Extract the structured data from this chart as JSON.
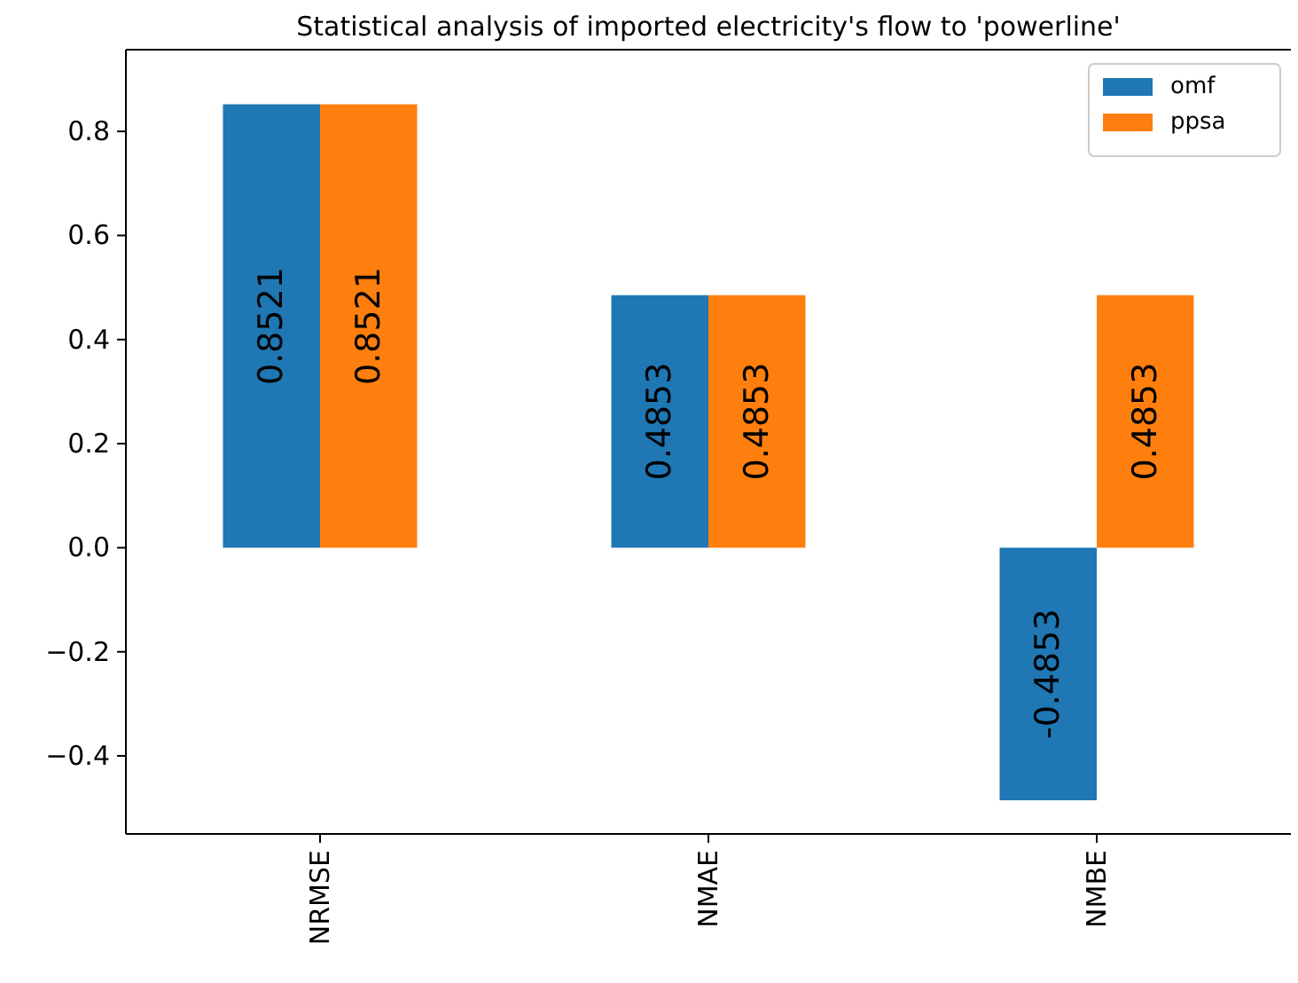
{
  "chart_data": {
    "type": "bar",
    "title": "Statistical analysis of imported electricity's flow to 'powerline'",
    "categories": [
      "NRMSE",
      "NMAE",
      "NMBE"
    ],
    "series": [
      {
        "name": "omf",
        "color": "#1f77b4",
        "values": [
          0.8521,
          0.4853,
          -0.4853
        ]
      },
      {
        "name": "ppsa",
        "color": "#ff7f0e",
        "values": [
          0.8521,
          0.4853,
          0.4853
        ]
      }
    ],
    "ylim": [
      -0.55,
      0.957
    ],
    "yticks": [
      {
        "value": -0.4,
        "label": "−0.4"
      },
      {
        "value": -0.2,
        "label": "−0.2"
      },
      {
        "value": 0,
        "label": "0.0"
      },
      0.2,
      0.4,
      0.6,
      0.8
    ],
    "data_labels": true,
    "legend": "top right",
    "grid": false
  }
}
